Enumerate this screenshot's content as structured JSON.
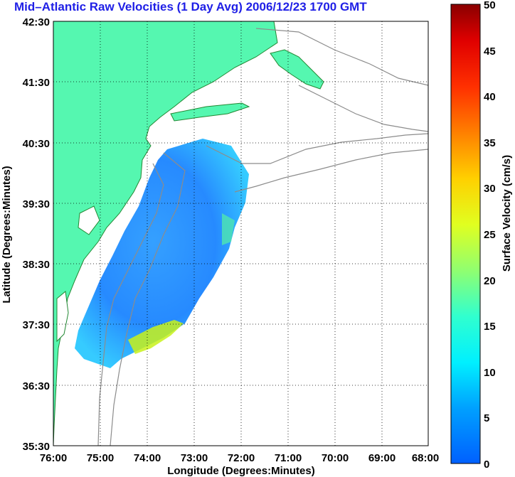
{
  "title": "Mid–Atlantic Raw Velocities (1 Day Avg) 2006/12/23 1700 GMT",
  "axes": {
    "xlabel": "Longitude (Degrees:Minutes)",
    "ylabel": "Latitude (Degrees:Minutes)",
    "xticks": [
      "76:00",
      "75:00",
      "74:00",
      "73:00",
      "72:00",
      "71:00",
      "70:00",
      "69:00",
      "68:00"
    ],
    "yticks": [
      "42:30",
      "41:30",
      "40:30",
      "39:30",
      "38:30",
      "37:30",
      "36:30",
      "35:30"
    ]
  },
  "colorbar": {
    "label": "Surface Velocity (cm/s)",
    "ticks": [
      "50",
      "45",
      "40",
      "35",
      "30",
      "25",
      "20",
      "15",
      "10",
      "5",
      "0"
    ],
    "min": 0,
    "max": 50
  },
  "colors": {
    "land": "#55f7b0",
    "title": "#1f1fe6",
    "field_low": "#1a7dff",
    "field_mid": "#22c0ff",
    "field_high": "#c8f21a",
    "bathymetry": "#8c8c8c"
  }
}
